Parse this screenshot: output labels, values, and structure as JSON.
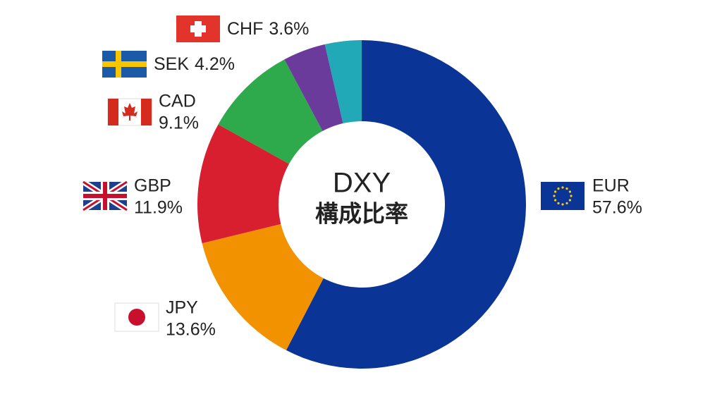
{
  "chart_data": {
    "type": "pie",
    "donut": true,
    "title": "DXY",
    "subtitle": "構成比率",
    "categories": [
      "EUR",
      "JPY",
      "GBP",
      "CAD",
      "SEK",
      "CHF"
    ],
    "values": [
      57.6,
      13.6,
      11.9,
      9.1,
      4.2,
      3.6
    ],
    "value_labels": [
      "57.6%",
      "13.6%",
      "11.9%",
      "9.1%",
      "4.2%",
      "3.6%"
    ],
    "colors": [
      "#0b3497",
      "#f39200",
      "#d71f30",
      "#2eaa4c",
      "#6b3b9c",
      "#21a9b7"
    ]
  }
}
